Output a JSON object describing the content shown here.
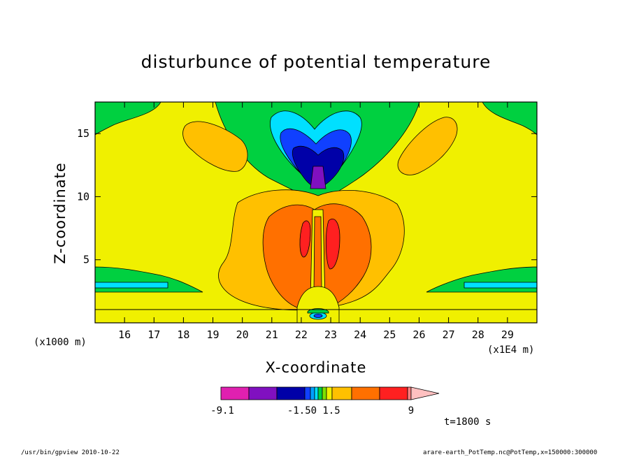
{
  "chart_data": {
    "type": "heatmap",
    "title": "disturbunce of potential temperature",
    "xlabel": "X-coordinate",
    "ylabel": "Z-coordinate",
    "x_ticks": [
      "16",
      "17",
      "18",
      "19",
      "20",
      "21",
      "22",
      "23",
      "24",
      "25",
      "26",
      "27",
      "28",
      "29"
    ],
    "x_tick_values": [
      16,
      17,
      18,
      19,
      20,
      21,
      22,
      23,
      24,
      25,
      26,
      27,
      28,
      29
    ],
    "y_ticks": [
      "5",
      "10",
      "15"
    ],
    "y_tick_values": [
      5,
      10,
      15
    ],
    "xlim": [
      15,
      30
    ],
    "ylim": [
      0,
      17.5
    ],
    "x_units_left": "(x1000 m)",
    "x_units_right": "(x1E4 m)",
    "colorbar": {
      "labels": [
        "-9.1",
        "-1.50",
        "1.5",
        "9"
      ],
      "colors": [
        "#e020b0",
        "#8010c0",
        "#0000a8",
        "#1040ff",
        "#00a0ff",
        "#00e0ff",
        "#00d040",
        "#80e000",
        "#f0f000",
        "#ffc000",
        "#ff7000",
        "#ff2020",
        "#ff8080",
        "#ffc0c0"
      ]
    },
    "field_colors": {
      "strong_negative": "#8010c0",
      "negative_core": "#0000a8",
      "negative_mid": "#1040ff",
      "negative_weak": "#00e0ff",
      "slight_negative": "#00d040",
      "background": "#f0f000",
      "slight_positive": "#ffc000",
      "positive": "#ff7000",
      "strong_positive": "#ff2020"
    },
    "time_label": "t=1800 s"
  },
  "footer": {
    "left": "/usr/bin/gpview   2010-10-22",
    "right": "arare-earth_PotTemp.nc@PotTemp,x=150000:300000"
  }
}
